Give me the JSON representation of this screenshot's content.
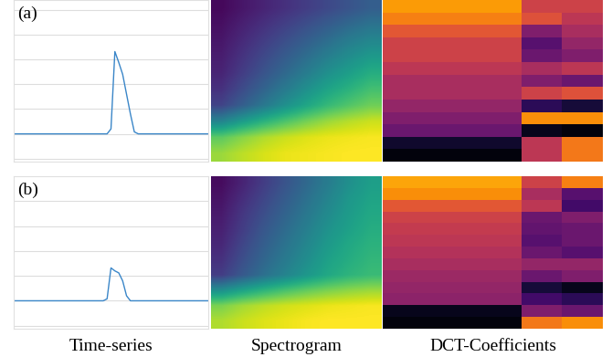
{
  "chart_data": [
    {
      "type": "line",
      "color": "#3a86c8",
      "grid": true,
      "tick_labels": false,
      "x": [
        0,
        2,
        4,
        6,
        8,
        10,
        12,
        14,
        16,
        18,
        20,
        22,
        24,
        26,
        28,
        30,
        32,
        34,
        36,
        38,
        40,
        42,
        44,
        46,
        48,
        50,
        52,
        54,
        56,
        58,
        60,
        62,
        64,
        66,
        68,
        70,
        72,
        74,
        76,
        78,
        80,
        82,
        84,
        86,
        88,
        90,
        92,
        94,
        96,
        98,
        100
      ],
      "values": [
        0,
        0,
        0,
        0,
        0,
        0,
        0,
        0,
        0,
        0,
        0,
        0,
        0,
        0,
        0,
        0,
        0,
        0,
        0,
        0,
        0,
        0,
        0,
        0,
        0,
        0.05,
        0.83,
        0.72,
        0.6,
        0.4,
        0.2,
        0.02,
        0,
        0,
        0,
        0,
        0,
        0,
        0,
        0,
        0,
        0,
        0,
        0,
        0,
        0,
        0,
        0,
        0,
        0,
        0
      ],
      "xlim": [
        0,
        100
      ],
      "xticks": [
        0,
        50,
        100
      ],
      "ylim": [
        -0.28,
        1.35
      ],
      "yticks": [
        -0.25,
        0,
        0.25,
        0.5,
        0.75,
        1.0,
        1.25
      ]
    },
    {
      "type": "heatmap",
      "clim": [
        0,
        1
      ],
      "cells": [
        [
          0.02,
          0.06,
          0.1,
          0.14,
          0.18,
          0.22,
          0.26,
          0.3
        ],
        [
          0.04,
          0.09,
          0.14,
          0.19,
          0.24,
          0.29,
          0.34,
          0.38
        ],
        [
          0.06,
          0.12,
          0.18,
          0.24,
          0.3,
          0.36,
          0.42,
          0.46
        ],
        [
          0.08,
          0.15,
          0.22,
          0.29,
          0.36,
          0.43,
          0.49,
          0.54
        ],
        [
          0.1,
          0.18,
          0.26,
          0.34,
          0.42,
          0.5,
          0.56,
          0.62
        ],
        [
          0.14,
          0.23,
          0.32,
          0.41,
          0.5,
          0.58,
          0.64,
          0.7
        ],
        [
          0.2,
          0.3,
          0.4,
          0.5,
          0.59,
          0.67,
          0.73,
          0.78
        ],
        [
          0.45,
          0.55,
          0.64,
          0.72,
          0.79,
          0.85,
          0.89,
          0.92
        ],
        [
          0.75,
          0.82,
          0.88,
          0.92,
          0.95,
          0.97,
          0.98,
          0.99
        ],
        [
          0.85,
          0.9,
          0.94,
          0.97,
          0.98,
          0.99,
          1.0,
          1.0
        ]
      ]
    },
    {
      "type": "heatmap",
      "clim": [
        0,
        1
      ],
      "cells": [
        [
          0.78,
          0.55,
          0.55
        ],
        [
          0.72,
          0.6,
          0.5
        ],
        [
          0.62,
          0.35,
          0.45
        ],
        [
          0.55,
          0.25,
          0.4
        ],
        [
          0.55,
          0.3,
          0.35
        ],
        [
          0.5,
          0.45,
          0.5
        ],
        [
          0.45,
          0.35,
          0.3
        ],
        [
          0.45,
          0.55,
          0.6
        ],
        [
          0.4,
          0.15,
          0.1
        ],
        [
          0.35,
          0.75,
          0.75
        ],
        [
          0.3,
          0.05,
          0.02
        ],
        [
          0.08,
          0.5,
          0.7
        ],
        [
          0.02,
          0.5,
          0.7
        ]
      ]
    },
    {
      "type": "line",
      "color": "#3a86c8",
      "grid": true,
      "tick_labels": false,
      "x": [
        0,
        2,
        4,
        6,
        8,
        10,
        12,
        14,
        16,
        18,
        20,
        22,
        24,
        26,
        28,
        30,
        32,
        34,
        36,
        38,
        40,
        42,
        44,
        46,
        48,
        50,
        52,
        54,
        56,
        58,
        60,
        62,
        64,
        66,
        68,
        70,
        72,
        74,
        76,
        78,
        80,
        82,
        84,
        86,
        88,
        90,
        92,
        94,
        96,
        98,
        100
      ],
      "values": [
        0,
        0,
        0,
        0,
        0,
        0,
        0,
        0,
        0,
        0,
        0,
        0,
        0,
        0,
        0,
        0,
        0,
        0,
        0,
        0,
        0,
        0,
        0,
        0,
        0.02,
        0.33,
        0.3,
        0.28,
        0.2,
        0.05,
        0,
        0,
        0,
        0,
        0,
        0,
        0,
        0,
        0,
        0,
        0,
        0,
        0,
        0,
        0,
        0,
        0,
        0,
        0,
        0,
        0
      ],
      "xlim": [
        0,
        100
      ],
      "xticks": [
        0,
        50,
        100
      ],
      "ylim": [
        -0.28,
        1.25
      ],
      "yticks": [
        -0.25,
        0,
        0.25,
        0.5,
        0.75,
        1.0
      ]
    },
    {
      "type": "heatmap",
      "clim": [
        0,
        1
      ],
      "cells": [
        [
          0.03,
          0.1,
          0.18,
          0.26,
          0.34,
          0.42,
          0.5,
          0.56
        ],
        [
          0.05,
          0.13,
          0.21,
          0.29,
          0.37,
          0.45,
          0.53,
          0.58
        ],
        [
          0.07,
          0.16,
          0.24,
          0.32,
          0.4,
          0.48,
          0.55,
          0.6
        ],
        [
          0.09,
          0.18,
          0.27,
          0.35,
          0.43,
          0.51,
          0.57,
          0.62
        ],
        [
          0.11,
          0.21,
          0.3,
          0.38,
          0.46,
          0.54,
          0.6,
          0.64
        ],
        [
          0.14,
          0.24,
          0.33,
          0.41,
          0.49,
          0.57,
          0.62,
          0.66
        ],
        [
          0.18,
          0.28,
          0.37,
          0.45,
          0.53,
          0.6,
          0.65,
          0.68
        ],
        [
          0.5,
          0.58,
          0.65,
          0.71,
          0.76,
          0.8,
          0.83,
          0.85
        ],
        [
          0.8,
          0.86,
          0.9,
          0.93,
          0.95,
          0.97,
          0.98,
          0.99
        ],
        [
          0.88,
          0.92,
          0.95,
          0.97,
          0.99,
          1.0,
          1.0,
          1.0
        ]
      ]
    },
    {
      "type": "heatmap",
      "clim": [
        0,
        1
      ],
      "cells": [
        [
          0.8,
          0.55,
          0.72
        ],
        [
          0.75,
          0.45,
          0.25
        ],
        [
          0.62,
          0.5,
          0.2
        ],
        [
          0.55,
          0.3,
          0.35
        ],
        [
          0.52,
          0.28,
          0.3
        ],
        [
          0.5,
          0.25,
          0.3
        ],
        [
          0.48,
          0.3,
          0.25
        ],
        [
          0.45,
          0.4,
          0.4
        ],
        [
          0.42,
          0.3,
          0.35
        ],
        [
          0.4,
          0.1,
          0.05
        ],
        [
          0.38,
          0.2,
          0.15
        ],
        [
          0.05,
          0.35,
          0.3
        ],
        [
          0.02,
          0.7,
          0.75
        ]
      ]
    }
  ],
  "row_labels": [
    "(a)",
    "(b)"
  ],
  "column_labels": [
    "Time-series",
    "Spectrogram",
    "DCT-Coefficients"
  ]
}
